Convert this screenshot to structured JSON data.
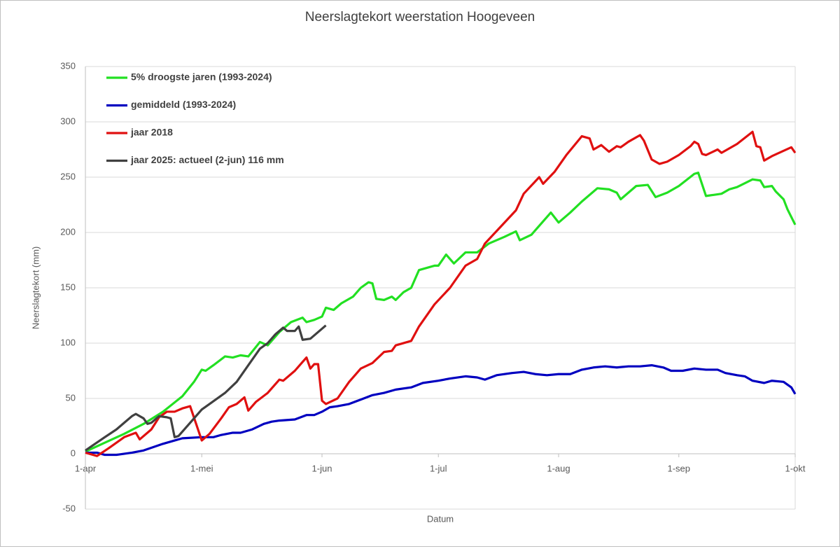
{
  "chart_data": {
    "type": "line",
    "title": "Neerslagtekort weerstation Hoogeveen",
    "x_label": "Datum",
    "y_label": "Neerslagtekort (mm)",
    "xlim": [
      0,
      183
    ],
    "xticks": [
      {
        "value": 0,
        "label": "1-apr"
      },
      {
        "value": 30,
        "label": "1-mei"
      },
      {
        "value": 61,
        "label": "1-jun"
      },
      {
        "value": 91,
        "label": "1-jul"
      },
      {
        "value": 122,
        "label": "1-aug"
      },
      {
        "value": 153,
        "label": "1-sep"
      },
      {
        "value": 183,
        "label": "1-okt"
      }
    ],
    "ylim": [
      -50,
      350
    ],
    "yticks": [
      -50,
      0,
      50,
      100,
      150,
      200,
      250,
      300,
      350
    ],
    "grid": true,
    "legend": "top-left",
    "series": [
      {
        "name": "5% droogste jaren (1993-2024)",
        "color": "#22e022",
        "x": [
          0,
          5,
          10,
          15,
          20,
          25,
          28,
          30,
          31,
          33,
          36,
          38,
          40,
          42,
          45,
          47,
          50,
          53,
          56,
          57,
          59,
          61,
          62,
          64,
          66,
          69,
          71,
          73,
          74,
          75,
          77,
          79,
          80,
          82,
          84,
          86,
          88,
          90,
          91,
          93,
          95,
          98,
          101,
          104,
          108,
          111,
          112,
          115,
          118,
          120,
          122,
          125,
          128,
          132,
          135,
          137,
          138,
          140,
          142,
          145,
          147,
          150,
          153,
          157,
          158,
          160,
          162,
          164,
          166,
          168,
          172,
          174,
          175,
          177,
          178,
          180,
          181,
          183
        ],
        "values": [
          2,
          10,
          18,
          27,
          38,
          52,
          65,
          76,
          75,
          80,
          88,
          87,
          89,
          88,
          101,
          98,
          110,
          119,
          123,
          119,
          121,
          124,
          132,
          130,
          136,
          142,
          150,
          155,
          154,
          140,
          139,
          142,
          139,
          146,
          150,
          166,
          168,
          170,
          170,
          180,
          172,
          182,
          182,
          190,
          196,
          201,
          193,
          198,
          210,
          218,
          209,
          218,
          228,
          240,
          239,
          236,
          230,
          236,
          242,
          243,
          232,
          236,
          242,
          253,
          254,
          233,
          234,
          235,
          239,
          241,
          248,
          247,
          241,
          242,
          237,
          230,
          221,
          207
        ]
      },
      {
        "name": "gemiddeld (1993-2024)",
        "color": "#0000c0",
        "x": [
          0,
          3,
          5,
          8,
          12,
          15,
          20,
          25,
          30,
          33,
          35,
          38,
          40,
          43,
          46,
          48,
          50,
          54,
          57,
          59,
          61,
          63,
          65,
          68,
          71,
          74,
          77,
          80,
          84,
          87,
          91,
          94,
          98,
          101,
          103,
          106,
          110,
          113,
          116,
          119,
          122,
          125,
          128,
          131,
          134,
          137,
          140,
          143,
          146,
          149,
          151,
          154,
          157,
          160,
          163,
          165,
          168,
          170,
          172,
          175,
          177,
          180,
          182,
          183
        ],
        "values": [
          1,
          1,
          -1,
          -1,
          1,
          3,
          9,
          14,
          15,
          15,
          17,
          19,
          19,
          22,
          27,
          29,
          30,
          31,
          35,
          35,
          38,
          42,
          43,
          45,
          49,
          53,
          55,
          58,
          60,
          64,
          66,
          68,
          70,
          69,
          67,
          71,
          73,
          74,
          72,
          71,
          72,
          72,
          76,
          78,
          79,
          78,
          79,
          79,
          80,
          78,
          75,
          75,
          77,
          76,
          76,
          73,
          71,
          70,
          66,
          64,
          66,
          65,
          60,
          54
        ]
      },
      {
        "name": "jaar 2018",
        "color": "#e01010",
        "x": [
          0,
          3,
          6,
          10,
          13,
          14,
          17,
          19,
          21,
          23,
          25,
          27,
          30,
          32,
          35,
          37,
          39,
          41,
          42,
          44,
          47,
          50,
          51,
          54,
          56,
          57,
          58,
          59,
          60,
          61,
          62,
          65,
          68,
          71,
          74,
          77,
          79,
          80,
          84,
          86,
          90,
          94,
          98,
          101,
          103,
          107,
          111,
          113,
          117,
          118,
          121,
          124,
          128,
          130,
          131,
          133,
          135,
          137,
          138,
          140,
          143,
          144,
          146,
          147,
          148,
          150,
          153,
          156,
          157,
          158,
          159,
          160,
          163,
          164,
          168,
          172,
          173,
          174,
          175,
          177,
          182,
          183
        ],
        "values": [
          1,
          -2,
          5,
          15,
          19,
          13,
          22,
          33,
          38,
          38,
          41,
          43,
          12,
          18,
          32,
          42,
          45,
          51,
          39,
          47,
          55,
          67,
          66,
          75,
          83,
          87,
          77,
          81,
          81,
          48,
          45,
          50,
          65,
          77,
          82,
          92,
          93,
          98,
          102,
          115,
          135,
          150,
          170,
          176,
          190,
          205,
          220,
          235,
          250,
          244,
          255,
          270,
          287,
          285,
          275,
          279,
          273,
          278,
          277,
          282,
          288,
          283,
          266,
          264,
          262,
          264,
          270,
          278,
          282,
          280,
          271,
          270,
          275,
          272,
          280,
          291,
          278,
          277,
          265,
          269,
          277,
          272
        ]
      },
      {
        "name": "jaar 2025: actueel (2-jun) 116 mm",
        "color": "#404040",
        "x": [
          0,
          5,
          8,
          10,
          12,
          13,
          15,
          16,
          17,
          19,
          21,
          22,
          23,
          24,
          27,
          30,
          32,
          36,
          39,
          42,
          45,
          47,
          49,
          51,
          52,
          54,
          55,
          56,
          58,
          60,
          62
        ],
        "values": [
          3,
          15,
          22,
          28,
          34,
          36,
          32,
          27,
          28,
          34,
          33,
          32,
          15,
          16,
          28,
          40,
          45,
          55,
          65,
          80,
          95,
          100,
          108,
          114,
          111,
          111,
          115,
          103,
          104,
          110,
          116
        ]
      }
    ]
  }
}
